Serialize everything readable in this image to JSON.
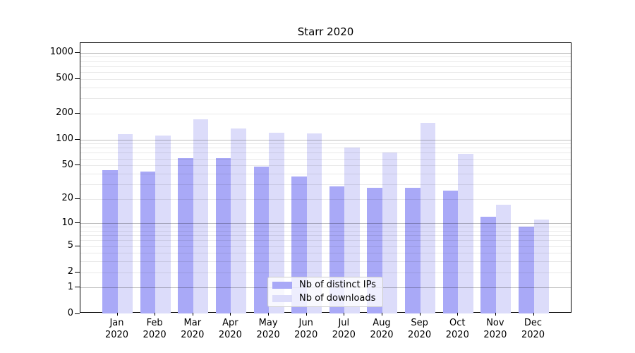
{
  "chart_data": {
    "type": "bar",
    "title": "Starr 2020",
    "categories": [
      "Jan 2020",
      "Feb 2020",
      "Mar 2020",
      "Apr 2020",
      "May 2020",
      "Jun 2020",
      "Jul 2020",
      "Aug 2020",
      "Sep 2020",
      "Oct 2020",
      "Nov 2020",
      "Dec 2020"
    ],
    "series": [
      {
        "name": "Nb of distinct IPs",
        "color": "#a9a9f7",
        "values": [
          44,
          42,
          60,
          60,
          48,
          37,
          28,
          27,
          27,
          25,
          12,
          9
        ]
      },
      {
        "name": "Nb of downloads",
        "color": "#dcdcfa",
        "values": [
          115,
          110,
          170,
          133,
          120,
          117,
          81,
          71,
          157,
          68,
          17,
          11
        ]
      }
    ],
    "xlabel": "",
    "ylabel": "",
    "yscale": "log1p",
    "y_ticks": [
      1000,
      500,
      200,
      100,
      50,
      20,
      10,
      5,
      2,
      1,
      0
    ],
    "y_major_gridlines": [
      1,
      10,
      100,
      1000
    ],
    "y_minor_gridlines": [
      2,
      3,
      4,
      5,
      6,
      7,
      8,
      9,
      20,
      30,
      40,
      50,
      60,
      70,
      80,
      90,
      200,
      300,
      400,
      500,
      600,
      700,
      800,
      900
    ],
    "ylim": [
      0,
      1290
    ],
    "grid": "on",
    "legend_position": "lower-center"
  },
  "colors": {
    "series1": "#a9a9f7",
    "series2": "#dcdcfa",
    "grid_major": "#bfbfbf",
    "grid_minor": "#ececec",
    "spine": "#000000",
    "legend_border": "#cccccc",
    "background": "#ffffff"
  }
}
